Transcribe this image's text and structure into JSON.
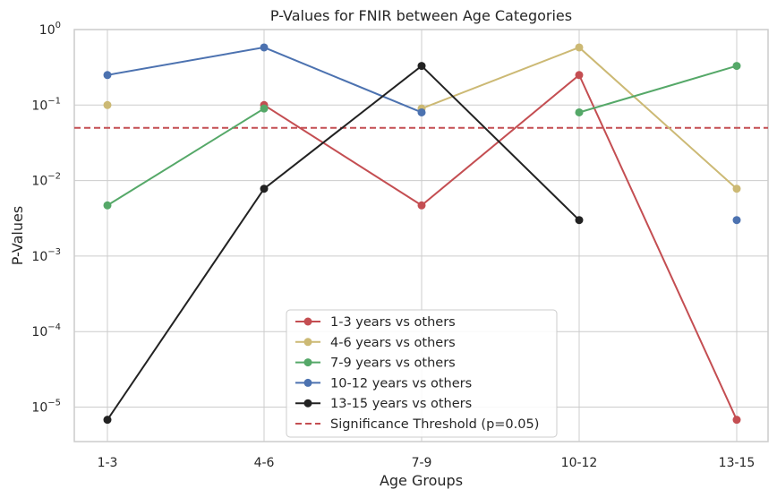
{
  "chart_data": {
    "type": "line",
    "title": "P-Values for FNIR between Age Categories",
    "xlabel": "Age Groups",
    "ylabel": "P-Values",
    "y_scale": "log",
    "ylim": [
      3.5e-06,
      1
    ],
    "y_ticks": [
      {
        "value": 1,
        "base": "10",
        "exp": "0"
      },
      {
        "value": 0.1,
        "base": "10",
        "exp": "−1"
      },
      {
        "value": 0.01,
        "base": "10",
        "exp": "−2"
      },
      {
        "value": 0.001,
        "base": "10",
        "exp": "−3"
      },
      {
        "value": 0.0001,
        "base": "10",
        "exp": "−4"
      },
      {
        "value": 1e-05,
        "base": "10",
        "exp": "−5"
      }
    ],
    "categories": [
      "1-3",
      "4-6",
      "7-9",
      "10-12",
      "13-15"
    ],
    "grid": true,
    "legend_position": "lower-center",
    "series": [
      {
        "name": "1-3 years vs others",
        "color": "#c44e52",
        "values": [
          null,
          0.1,
          0.0047,
          0.25,
          6.8e-06
        ]
      },
      {
        "name": "4-6 years vs others",
        "color": "#ccb974",
        "values": [
          0.1,
          null,
          0.09,
          0.58,
          0.0078
        ]
      },
      {
        "name": "7-9 years vs others",
        "color": "#55a868",
        "values": [
          0.0047,
          0.09,
          null,
          0.08,
          0.33
        ]
      },
      {
        "name": "10-12 years vs others",
        "color": "#4c72b0",
        "values": [
          0.25,
          0.58,
          0.08,
          null,
          0.003
        ]
      },
      {
        "name": "13-15 years vs others",
        "color": "#222222",
        "values": [
          6.8e-06,
          0.0078,
          0.33,
          0.003,
          null
        ]
      }
    ],
    "threshold": {
      "name": "Significance Threshold (p=0.05)",
      "value": 0.05,
      "color": "#c44e52"
    }
  }
}
